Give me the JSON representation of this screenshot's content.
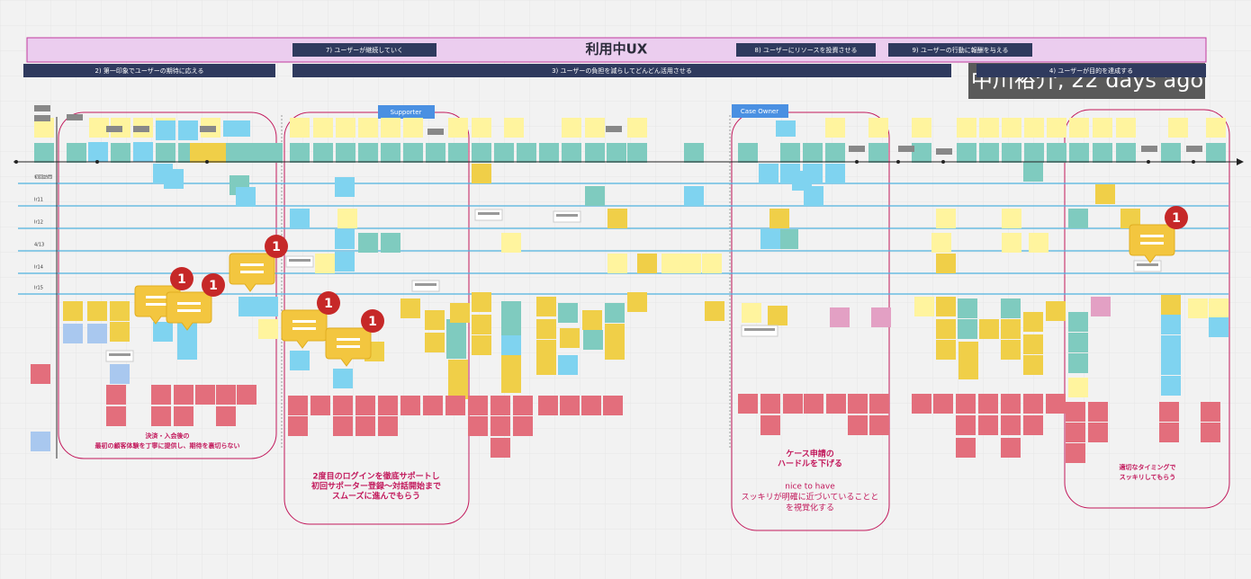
{
  "header": {
    "title": "利用中UX",
    "stages": [
      "7) ユーザーが継続していく",
      "8) ユーザーにリソースを投資させる",
      "9) ユーザーの行動に報酬を与える",
      "2) 第一印象でユーザーの期待に応える",
      "3) ユーザーの負担を減らしてどんどん活用させる",
      "4) ユーザーが目的を達成する"
    ],
    "author": "中川裕介, 22 days ago"
  },
  "roles": [
    "Supporter",
    "Case Owner"
  ],
  "rows": [
    "初回訪問",
    "Ir11",
    "Ir12",
    "4/13",
    "Ir14",
    "Ir15"
  ],
  "groups": [
    {
      "lines": [
        "決済・入会後の",
        "最初の顧客体験を丁寧に提供し、期待を裏切らない"
      ]
    },
    {
      "lines": [
        "2度目のログインを徹底サポートし",
        "初回サポーター登録〜対話開始まで",
        "スムーズに進んでもらう"
      ]
    },
    {
      "lines": [
        "ケース申請の",
        "ハードルを下げる"
      ],
      "note": [
        "nice to have",
        "スッキリが明確に近づいていることと",
        "を視覚化する"
      ]
    },
    {
      "lines": [
        "適切なタイミングで",
        "スッキリしてもらう"
      ]
    }
  ],
  "comments": [
    {
      "count": 1
    },
    {
      "count": 1
    },
    {
      "count": 1
    },
    {
      "count": 1
    },
    {
      "count": 1
    },
    {
      "count": 1
    }
  ]
}
